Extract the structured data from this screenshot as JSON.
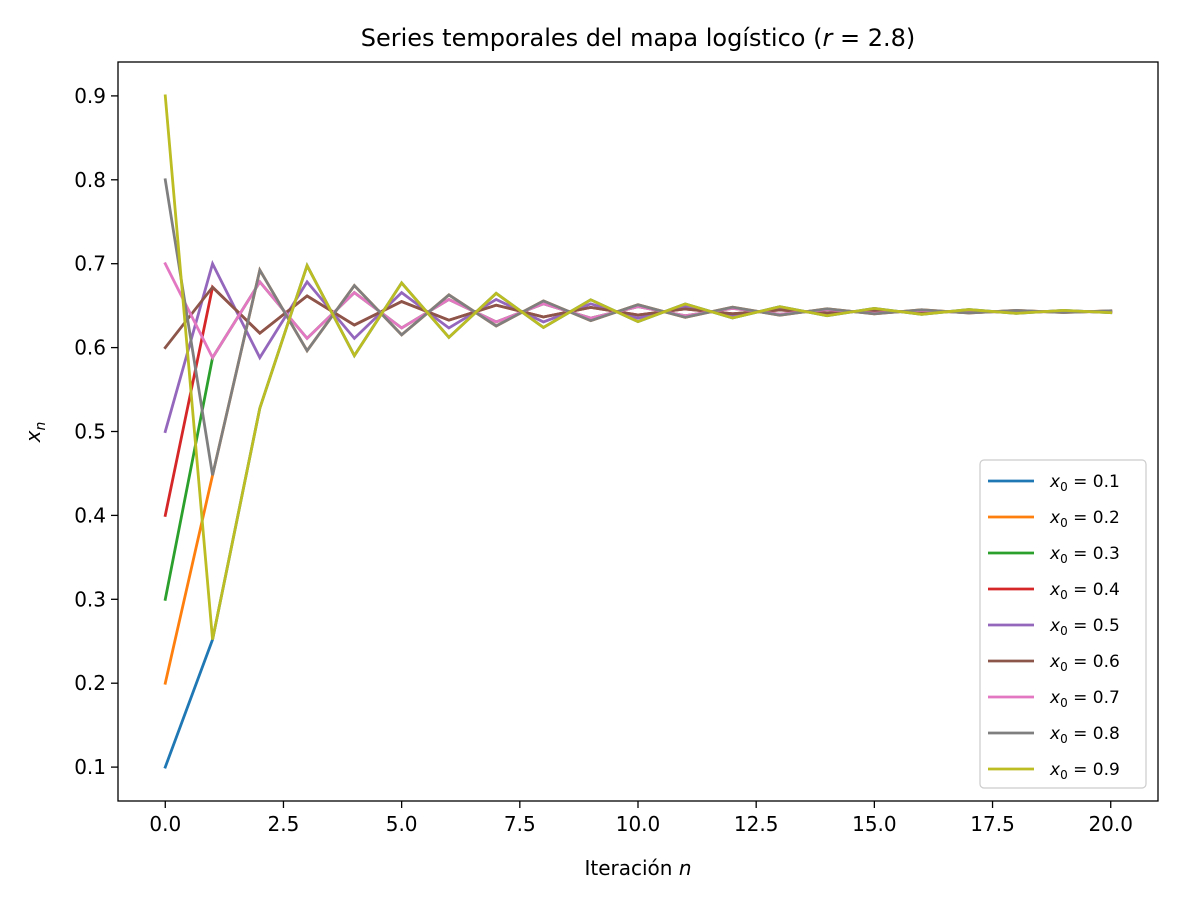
{
  "chart_data": {
    "type": "line",
    "title": "Series temporales del mapa logístico (r = 2.8)",
    "title_parts": {
      "prefix": "Series temporales del mapa logístico (",
      "var": "r",
      "rest": " = 2.8)"
    },
    "xlabel": {
      "text": "Iteración ",
      "var": "n"
    },
    "ylabel": {
      "var": "x",
      "sub": "n"
    },
    "xlim": [
      -1.0,
      21.0
    ],
    "ylim": [
      0.0596,
      0.9404
    ],
    "x_ticks": [
      0,
      2.5,
      5,
      7.5,
      10,
      12.5,
      15,
      17.5,
      20
    ],
    "x_tick_labels": [
      "0.0",
      "2.5",
      "5.0",
      "7.5",
      "10.0",
      "12.5",
      "15.0",
      "17.5",
      "20.0"
    ],
    "y_ticks": [
      0.1,
      0.2,
      0.3,
      0.4,
      0.5,
      0.6,
      0.7,
      0.8,
      0.9
    ],
    "y_tick_labels": [
      "0.1",
      "0.2",
      "0.3",
      "0.4",
      "0.5",
      "0.6",
      "0.7",
      "0.8",
      "0.9"
    ],
    "grid": false,
    "legend_position": "lower right",
    "x": [
      0,
      1,
      2,
      3,
      4,
      5,
      6,
      7,
      8,
      9,
      10,
      11,
      12,
      13,
      14,
      15,
      16,
      17,
      18,
      19,
      20
    ],
    "series": [
      {
        "name_var": "x",
        "name_sub": "0",
        "name_rest": " = 0.1",
        "color": "#1f77b4",
        "values": [
          0.1,
          0.252,
          0.5278,
          0.6978,
          0.5904,
          0.6771,
          0.6122,
          0.6647,
          0.624,
          0.657,
          0.631,
          0.652,
          0.6353,
          0.6488,
          0.638,
          0.6467,
          0.6397,
          0.6453,
          0.6408,
          0.6444,
          0.6416
        ]
      },
      {
        "name_var": "x",
        "name_sub": "0",
        "name_rest": " = 0.2",
        "color": "#ff7f0e",
        "values": [
          0.2,
          0.448,
          0.6924,
          0.5963,
          0.674,
          0.6152,
          0.6628,
          0.6258,
          0.6557,
          0.6321,
          0.6511,
          0.6361,
          0.6482,
          0.6386,
          0.6463,
          0.6402,
          0.6451,
          0.6412,
          0.6443,
          0.6418,
          0.6438
        ]
      },
      {
        "name_var": "x",
        "name_sub": "0",
        "name_rest": " = 0.3",
        "color": "#2ca02c",
        "values": [
          0.3,
          0.588,
          0.6783,
          0.611,
          0.6655,
          0.6234,
          0.6574,
          0.6306,
          0.6522,
          0.6351,
          0.6488,
          0.638,
          0.6467,
          0.6398,
          0.6453,
          0.6409,
          0.6444,
          0.6416,
          0.6439,
          0.6421,
          0.6435
        ]
      },
      {
        "name_var": "x",
        "name_sub": "0",
        "name_rest": " = 0.4",
        "color": "#d62728",
        "values": [
          0.4,
          0.672,
          0.6172,
          0.6616,
          0.6269,
          0.6549,
          0.6327,
          0.6506,
          0.6365,
          0.6479,
          0.6389,
          0.6461,
          0.6403,
          0.6449,
          0.6413,
          0.6442,
          0.6419,
          0.6437,
          0.6422,
          0.6434,
          0.6425
        ]
      },
      {
        "name_var": "x",
        "name_sub": "0",
        "name_rest": " = 0.5",
        "color": "#9467bd",
        "values": [
          0.5,
          0.7,
          0.588,
          0.6783,
          0.611,
          0.6655,
          0.6234,
          0.6574,
          0.6306,
          0.6522,
          0.6351,
          0.6488,
          0.638,
          0.6467,
          0.6398,
          0.6453,
          0.6409,
          0.6444,
          0.6416,
          0.6439,
          0.6421
        ]
      },
      {
        "name_var": "x",
        "name_sub": "0",
        "name_rest": " = 0.6",
        "color": "#8c564b",
        "values": [
          0.6,
          0.672,
          0.6172,
          0.6616,
          0.6269,
          0.6549,
          0.6327,
          0.6506,
          0.6365,
          0.6479,
          0.6389,
          0.6461,
          0.6403,
          0.6449,
          0.6413,
          0.6442,
          0.6419,
          0.6437,
          0.6422,
          0.6434,
          0.6425
        ]
      },
      {
        "name_var": "x",
        "name_sub": "0",
        "name_rest": " = 0.7",
        "color": "#e377c2",
        "values": [
          0.7,
          0.588,
          0.6783,
          0.611,
          0.6655,
          0.6234,
          0.6574,
          0.6306,
          0.6522,
          0.6351,
          0.6488,
          0.638,
          0.6467,
          0.6398,
          0.6453,
          0.6409,
          0.6444,
          0.6416,
          0.6439,
          0.6421,
          0.6435
        ]
      },
      {
        "name_var": "x",
        "name_sub": "0",
        "name_rest": " = 0.8",
        "color": "#7f7f7f",
        "values": [
          0.8,
          0.448,
          0.6924,
          0.5963,
          0.674,
          0.6152,
          0.6628,
          0.6258,
          0.6557,
          0.6321,
          0.6511,
          0.6361,
          0.6482,
          0.6386,
          0.6463,
          0.6402,
          0.6451,
          0.6412,
          0.6443,
          0.6418,
          0.6438
        ]
      },
      {
        "name_var": "x",
        "name_sub": "0",
        "name_rest": " = 0.9",
        "color": "#bcbd22",
        "values": [
          0.9,
          0.252,
          0.5278,
          0.6978,
          0.5904,
          0.6771,
          0.6122,
          0.6647,
          0.624,
          0.657,
          0.631,
          0.652,
          0.6353,
          0.6488,
          0.638,
          0.6467,
          0.6397,
          0.6453,
          0.6408,
          0.6444,
          0.6416
        ]
      }
    ]
  }
}
